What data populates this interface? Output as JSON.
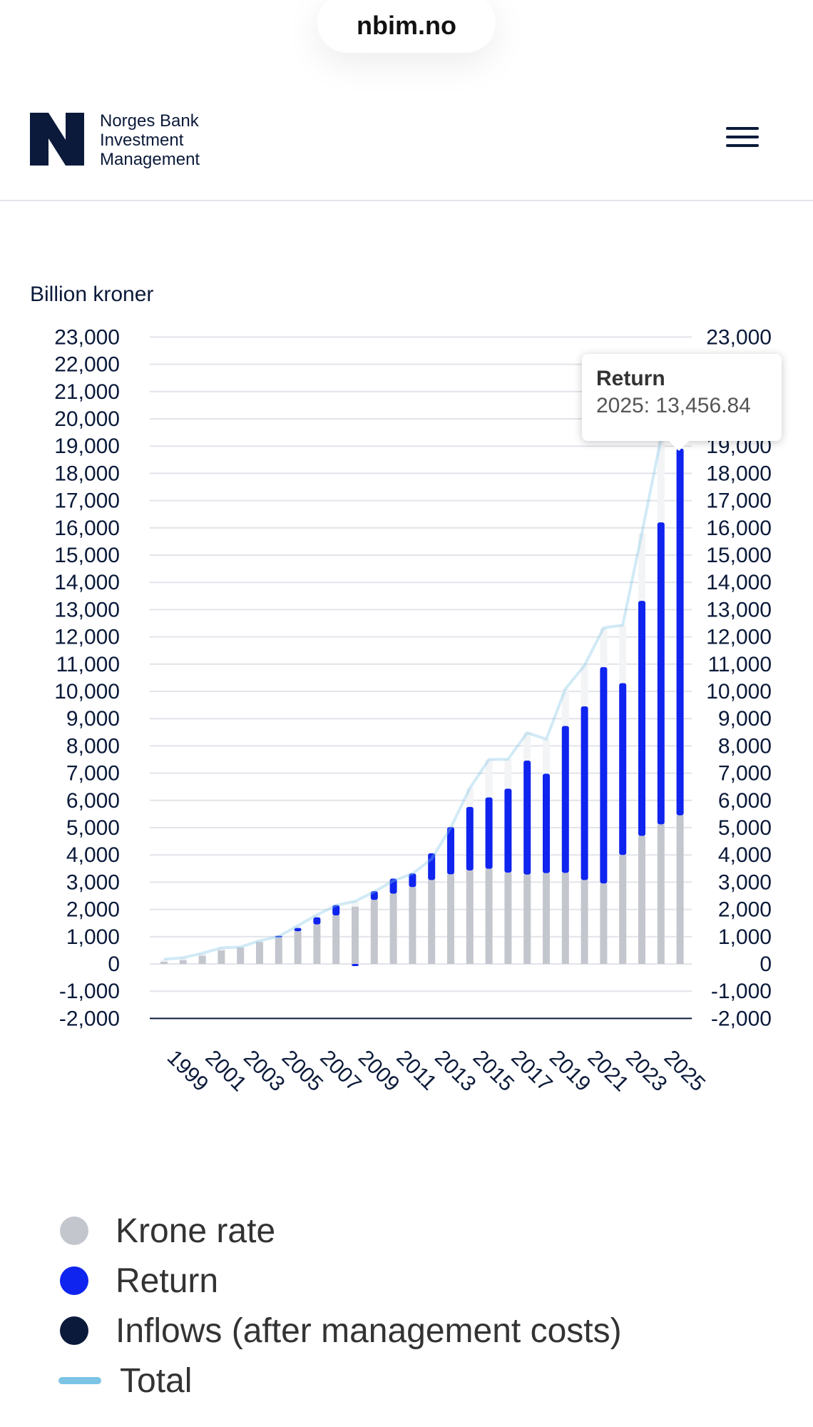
{
  "browser": {
    "url": "nbim.no"
  },
  "header": {
    "logo_lines": [
      "Norges Bank",
      "Investment",
      "Management"
    ]
  },
  "tooltip": {
    "title": "Return",
    "body": "2025: 13,456.84"
  },
  "colors": {
    "krone_rate": "#c4c6ce",
    "return": "#0f24ee",
    "inflows": "#0b1a3a",
    "total": "#7cc4e4"
  },
  "chart_data": {
    "type": "bar",
    "stacked": true,
    "ylabel": "Billion kroner",
    "ylim": [
      -2000,
      23000
    ],
    "yticks": [
      23000,
      22000,
      21000,
      20000,
      19000,
      18000,
      17000,
      16000,
      15000,
      14000,
      13000,
      12000,
      11000,
      10000,
      9000,
      8000,
      7000,
      6000,
      5000,
      4000,
      3000,
      2000,
      1000,
      0,
      -1000,
      -2000
    ],
    "ytick_labels": [
      "23,000",
      "22,000",
      "21,000",
      "20,000",
      "19,000",
      "18,000",
      "17,000",
      "16,000",
      "15,000",
      "14,000",
      "13,000",
      "12,000",
      "11,000",
      "10,000",
      "9,000",
      "8,000",
      "7,000",
      "6,000",
      "5,000",
      "4,000",
      "3,000",
      "2,000",
      "1,000",
      "0",
      "-1,000",
      "-2,000"
    ],
    "categories": [
      "1998",
      "1999",
      "2000",
      "2001",
      "2002",
      "2003",
      "2004",
      "2005",
      "2006",
      "2007",
      "2008",
      "2009",
      "2010",
      "2011",
      "2012",
      "2013",
      "2014",
      "2015",
      "2016",
      "2017",
      "2018",
      "2019",
      "2020",
      "2021",
      "2022",
      "2023",
      "2024",
      "2025"
    ],
    "xtick_labels": [
      "1999",
      "2001",
      "2003",
      "2005",
      "2007",
      "2009",
      "2011",
      "2013",
      "2015",
      "2017",
      "2019",
      "2021",
      "2023",
      "2025"
    ],
    "series": [
      {
        "name": "Krone rate",
        "values": [
          80,
          140,
          300,
          500,
          600,
          800,
          980,
          1200,
          1450,
          1780,
          2100,
          2350,
          2580,
          2820,
          3080,
          3290,
          3430,
          3490,
          3350,
          3280,
          3330,
          3340,
          3080,
          2950,
          4000,
          4700,
          5120,
          5450
        ]
      },
      {
        "name": "Return",
        "values": [
          0,
          0,
          0,
          0,
          0,
          0,
          50,
          120,
          260,
          380,
          -80,
          320,
          550,
          500,
          980,
          1730,
          2330,
          2620,
          3080,
          4180,
          3650,
          5390,
          6370,
          7940,
          6300,
          8620,
          11080,
          13456.84
        ]
      },
      {
        "name": "Inflows (after management costs)",
        "values": [
          0,
          0,
          0,
          0,
          0,
          0,
          0,
          0,
          0,
          0,
          0,
          0,
          0,
          0,
          0,
          0,
          0,
          0,
          0,
          0,
          0,
          0,
          0,
          0,
          0,
          0,
          0,
          0
        ]
      },
      {
        "name": "Total",
        "values": [
          170,
          230,
          390,
          590,
          620,
          850,
          1010,
          1400,
          1800,
          2150,
          2300,
          2650,
          3050,
          3310,
          3850,
          5000,
          6450,
          7500,
          7510,
          8480,
          8250,
          10090,
          10950,
          12330,
          12430,
          15800,
          19270,
          20320
        ]
      }
    ],
    "legend": [
      "Krone rate",
      "Return",
      "Inflows (after management costs)",
      "Total"
    ],
    "grid": true,
    "legend_position": "bottom"
  }
}
